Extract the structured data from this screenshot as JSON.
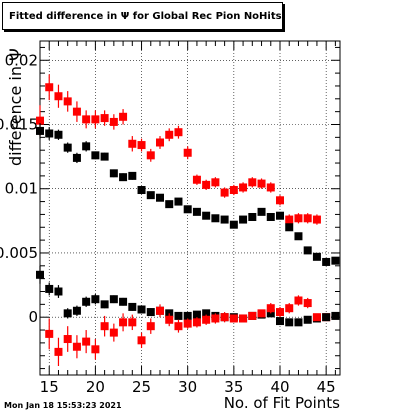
{
  "title": "Fitted difference in Ψ  for Global Rec Pion NoHits",
  "xlabel": "No. of Fit Points",
  "ylabel": "difference in Ψ",
  "timestamp": "Mon Jan 18 15:53:23 2021",
  "chart_data": {
    "type": "scatter",
    "xlim": [
      14,
      46.5
    ],
    "ylim": [
      -0.0045,
      0.0215
    ],
    "x_ticks": [
      15,
      20,
      25,
      30,
      35,
      40,
      45
    ],
    "y_ticks": [
      0,
      0.005,
      0.01,
      0.015,
      0.02
    ],
    "x_tick_labels": [
      "15",
      "20",
      "25",
      "30",
      "35",
      "40",
      "45"
    ],
    "y_tick_labels": [
      "0",
      "0.005",
      "0.01",
      "0.015",
      "0.02"
    ],
    "grid": true,
    "series": [
      {
        "color": "#ff0000",
        "x": [
          14,
          15,
          16,
          17,
          18,
          19,
          20,
          21,
          22,
          23,
          24,
          25,
          26,
          27,
          28,
          29,
          30,
          31,
          32,
          33,
          34,
          35,
          36,
          37,
          38,
          39,
          40,
          41,
          42,
          43,
          44,
          45
        ],
        "y": [
          0.0153,
          0.0179,
          0.0172,
          0.0168,
          0.016,
          0.0154,
          0.0154,
          0.0155,
          0.0152,
          0.0156,
          0.0135,
          0.0134,
          0.0126,
          0.0136,
          0.0142,
          0.0144,
          0.0128,
          0.0107,
          0.0103,
          0.0105,
          0.0097,
          0.0099,
          0.0101,
          0.0105,
          0.0104,
          0.0101,
          0.0091,
          0.0076,
          0.0077,
          0.0077,
          0.0076,
          0.0
        ],
        "err": [
          0.0012,
          0.001,
          0.0009,
          0.0008,
          0.0008,
          0.0007,
          0.0007,
          0.0006,
          0.0006,
          0.0006,
          0.0006,
          0.0005,
          0.0005,
          0.0005,
          0.0005,
          0.0005,
          0.0005,
          0.0004,
          0.0004,
          0.0004,
          0.0004,
          0.0004,
          0.0004,
          0.0004,
          0.0004,
          0.0004,
          0.0004,
          0.0004,
          0.0004,
          0.0004,
          0.0004,
          0.0
        ]
      },
      {
        "color": "#000000",
        "x": [
          14,
          15,
          16,
          17,
          18,
          19,
          20,
          21,
          22,
          23,
          24,
          25,
          26,
          27,
          28,
          29,
          30,
          31,
          32,
          33,
          34,
          35,
          36,
          37,
          38,
          39,
          40,
          41,
          42,
          43,
          44,
          45,
          46
        ],
        "y": [
          0.0145,
          0.0143,
          0.0142,
          0.0132,
          0.0124,
          0.0133,
          0.0126,
          0.0125,
          0.0112,
          0.0109,
          0.011,
          0.0099,
          0.0095,
          0.0093,
          0.0088,
          0.009,
          0.0084,
          0.0082,
          0.0079,
          0.0077,
          0.0076,
          0.0072,
          0.0076,
          0.0078,
          0.0082,
          0.0078,
          0.0079,
          0.007,
          0.0063,
          0.0052,
          0.0047,
          0.0043,
          0.0044
        ],
        "err": [
          0.0006,
          0.0005,
          0.0004,
          0.0004,
          0.0004,
          0.0004,
          0.0003,
          0.0003,
          0.0003,
          0.0003,
          0.0003,
          0.0003,
          0.0002,
          0.0002,
          0.0002,
          0.0002,
          0.0002,
          0.0002,
          0.0002,
          0.0002,
          0.0002,
          0.0002,
          0.0002,
          0.0002,
          0.0002,
          0.0002,
          0.0002,
          0.0002,
          0.0002,
          0.0002,
          0.0002,
          0.0002,
          0.0002
        ]
      },
      {
        "color": "#000000",
        "x": [
          14,
          15,
          16,
          17,
          18,
          19,
          20,
          21,
          22,
          23,
          24,
          25,
          26,
          27,
          28,
          29,
          30,
          31,
          32,
          33,
          34,
          35,
          36,
          37,
          38,
          39,
          40,
          41,
          42,
          43,
          44,
          45,
          46
        ],
        "y": [
          0.0033,
          0.0022,
          0.002,
          0.0003,
          0.0005,
          0.0012,
          0.0014,
          0.001,
          0.0014,
          0.0012,
          0.0008,
          0.0006,
          0.0004,
          0.0005,
          0.0003,
          0.0001,
          0.0001,
          0.0002,
          0.0003,
          0.0001,
          0.0,
          0.0,
          -0.0001,
          0.0001,
          0.0002,
          0.0003,
          -0.0003,
          -0.0004,
          -0.0004,
          -0.0002,
          -0.0001,
          0.0,
          0.0001
        ],
        "err": [
          0.0007,
          0.0005,
          0.0005,
          0.0004,
          0.0004,
          0.0004,
          0.0004,
          0.0003,
          0.0003,
          0.0003,
          0.0003,
          0.0003,
          0.0003,
          0.0002,
          0.0002,
          0.0002,
          0.0002,
          0.0002,
          0.0002,
          0.0002,
          0.0002,
          0.0002,
          0.0002,
          0.0002,
          0.0002,
          0.0002,
          0.0002,
          0.0002,
          0.0002,
          0.0002,
          0.0002,
          0.0002,
          0.0002
        ]
      },
      {
        "color": "#ff0000",
        "x": [
          15,
          16,
          17,
          18,
          19,
          20,
          21,
          22,
          23,
          24,
          25,
          26,
          27,
          28,
          29,
          30,
          31,
          32,
          33,
          34,
          35,
          36,
          37,
          38,
          39,
          40,
          41,
          42,
          43,
          44
        ],
        "y": [
          -0.0013,
          -0.0027,
          -0.0017,
          -0.0023,
          -0.0019,
          -0.0025,
          -0.0007,
          -0.0012,
          -0.0004,
          -0.0004,
          -0.0018,
          -0.0007,
          0.0005,
          -0.0002,
          -0.0007,
          -0.0005,
          -0.0004,
          -0.0002,
          -0.0001,
          0.0,
          -0.0001,
          -0.0001,
          0.0001,
          0.0003,
          0.0007,
          0.0004,
          0.0007,
          0.0013,
          0.0011,
          0.0
        ],
        "err": [
          0.0012,
          0.0011,
          0.001,
          0.0009,
          0.0009,
          0.0008,
          0.0008,
          0.0007,
          0.0007,
          0.0006,
          0.0006,
          0.0006,
          0.0005,
          0.0005,
          0.0005,
          0.0004,
          0.0004,
          0.0004,
          0.0004,
          0.0004,
          0.0003,
          0.0003,
          0.0003,
          0.0003,
          0.0004,
          0.0004,
          0.0004,
          0.0004,
          0.0004,
          0.0
        ]
      }
    ]
  }
}
